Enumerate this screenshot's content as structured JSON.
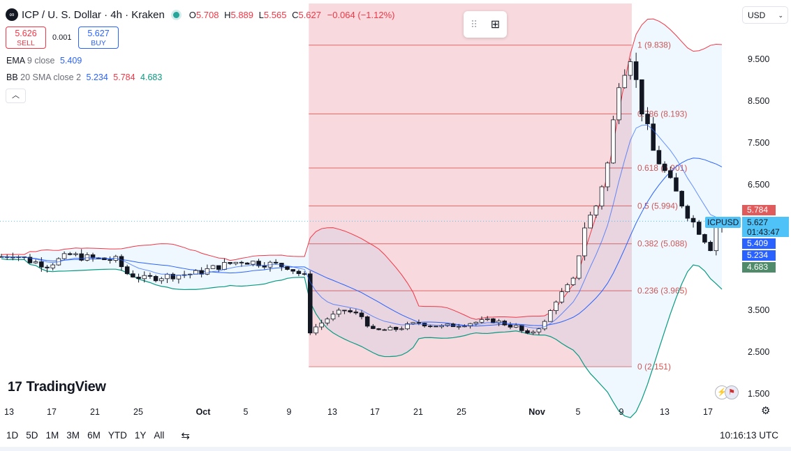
{
  "header": {
    "symbol_title": "ICP / U. S. Dollar · 4h · Kraken",
    "ohlc": {
      "o_label": "O",
      "o": "5.708",
      "h_label": "H",
      "h": "5.889",
      "l_label": "L",
      "l": "5.565",
      "c_label": "C",
      "c": "5.627",
      "change": "−0.064 (−1.12%)"
    }
  },
  "trade": {
    "sell_price": "5.626",
    "sell_label": "SELL",
    "spread": "0.001",
    "buy_price": "5.627",
    "buy_label": "BUY"
  },
  "indicators": {
    "ema": {
      "name": "EMA",
      "params": "9 close",
      "value": "5.409",
      "color": "#2962ff"
    },
    "bb": {
      "name": "BB",
      "params": "20 SMA close 2",
      "basis": "5.234",
      "upper": "5.784",
      "lower": "4.683",
      "basis_color": "#2962ff",
      "upper_color": "#f23645",
      "lower_color": "#089981"
    }
  },
  "currency_select": "USD",
  "branding": "TradingView",
  "price_tags": {
    "upper": "5.784",
    "upper_color": "#e05c5c",
    "symbol": "ICPUSD",
    "last": "5.627",
    "countdown": "01:43:47",
    "ema": "5.409",
    "ema_color": "#2962ff",
    "basis": "5.234",
    "basis_color": "#2962ff",
    "lower": "4.683",
    "lower_color": "#4f8a6a"
  },
  "bottom_bar": {
    "ranges": [
      "1D",
      "5D",
      "1M",
      "3M",
      "6M",
      "YTD",
      "1Y",
      "All"
    ],
    "clock": "10:16:13 UTC"
  },
  "chart_data": {
    "type": "candlestick",
    "interval": "4h",
    "y_axis": {
      "ticks": [
        1.5,
        2.5,
        3.5,
        4.5,
        5.5,
        6.5,
        7.5,
        8.5,
        9.5
      ],
      "labels": [
        "1.500",
        "2.500",
        "3.500",
        "4.500",
        "5.500",
        "6.500",
        "7.500",
        "8.500",
        "9.500"
      ],
      "range": [
        1.1,
        10.55
      ]
    },
    "x_axis": {
      "labels": [
        "13",
        "17",
        "21",
        "25",
        "Oct",
        "5",
        "9",
        "13",
        "17",
        "21",
        "25",
        "Nov",
        "5",
        "9",
        "13",
        "17"
      ]
    },
    "last_price": 5.627,
    "fibonacci": {
      "levels": [
        {
          "ratio": "1",
          "price": 9.838,
          "label": "1 (9.838)"
        },
        {
          "ratio": "0.786",
          "price": 8.193,
          "label": "0.786 (8.193)"
        },
        {
          "ratio": "0.618",
          "price": 6.901,
          "label": "0.618 (6.901)"
        },
        {
          "ratio": "0.5",
          "price": 5.994,
          "label": "0.5 (5.994)"
        },
        {
          "ratio": "0.382",
          "price": 5.088,
          "label": "0.382 (5.088)"
        },
        {
          "ratio": "0.236",
          "price": 3.965,
          "label": "0.236 (3.965)"
        },
        {
          "ratio": "0",
          "price": 2.151,
          "label": "0 (2.151)"
        }
      ],
      "fill_color": "#f7d4d8",
      "line_color": "#e06666"
    },
    "series_path": [
      {
        "x": 0,
        "y": 4.78
      },
      {
        "x": 2,
        "y": 4.85
      },
      {
        "x": 5,
        "y": 4.68
      },
      {
        "x": 8,
        "y": 4.58
      },
      {
        "x": 12,
        "y": 4.82
      },
      {
        "x": 16,
        "y": 4.73
      },
      {
        "x": 20,
        "y": 4.7
      },
      {
        "x": 22,
        "y": 4.38
      },
      {
        "x": 25,
        "y": 4.25
      },
      {
        "x": 29,
        "y": 4.32
      },
      {
        "x": 34,
        "y": 4.38
      },
      {
        "x": 38,
        "y": 4.55
      },
      {
        "x": 42,
        "y": 4.68
      },
      {
        "x": 46,
        "y": 4.62
      },
      {
        "x": 50,
        "y": 4.55
      },
      {
        "x": 53,
        "y": 4.3
      },
      {
        "x": 54,
        "y": 3.0
      },
      {
        "x": 57,
        "y": 3.3
      },
      {
        "x": 60,
        "y": 3.5
      },
      {
        "x": 63,
        "y": 3.35
      },
      {
        "x": 65,
        "y": 3.0
      },
      {
        "x": 69,
        "y": 3.05
      },
      {
        "x": 73,
        "y": 3.2
      },
      {
        "x": 77,
        "y": 3.1
      },
      {
        "x": 82,
        "y": 3.2
      },
      {
        "x": 86,
        "y": 3.25
      },
      {
        "x": 90,
        "y": 3.1
      },
      {
        "x": 92,
        "y": 2.9
      },
      {
        "x": 95,
        "y": 3.2
      },
      {
        "x": 97,
        "y": 3.75
      },
      {
        "x": 100,
        "y": 4.2
      },
      {
        "x": 102,
        "y": 5.5
      },
      {
        "x": 104,
        "y": 6.0
      },
      {
        "x": 106,
        "y": 7.0
      },
      {
        "x": 108,
        "y": 9.0
      },
      {
        "x": 110,
        "y": 9.6
      },
      {
        "x": 112,
        "y": 8.3
      },
      {
        "x": 114,
        "y": 7.3
      },
      {
        "x": 116,
        "y": 6.8
      },
      {
        "x": 118,
        "y": 6.3
      },
      {
        "x": 120,
        "y": 5.8
      },
      {
        "x": 122,
        "y": 5.4
      },
      {
        "x": 124,
        "y": 5.0
      },
      {
        "x": 125,
        "y": 5.5
      },
      {
        "x": 126,
        "y": 5.627
      }
    ]
  }
}
